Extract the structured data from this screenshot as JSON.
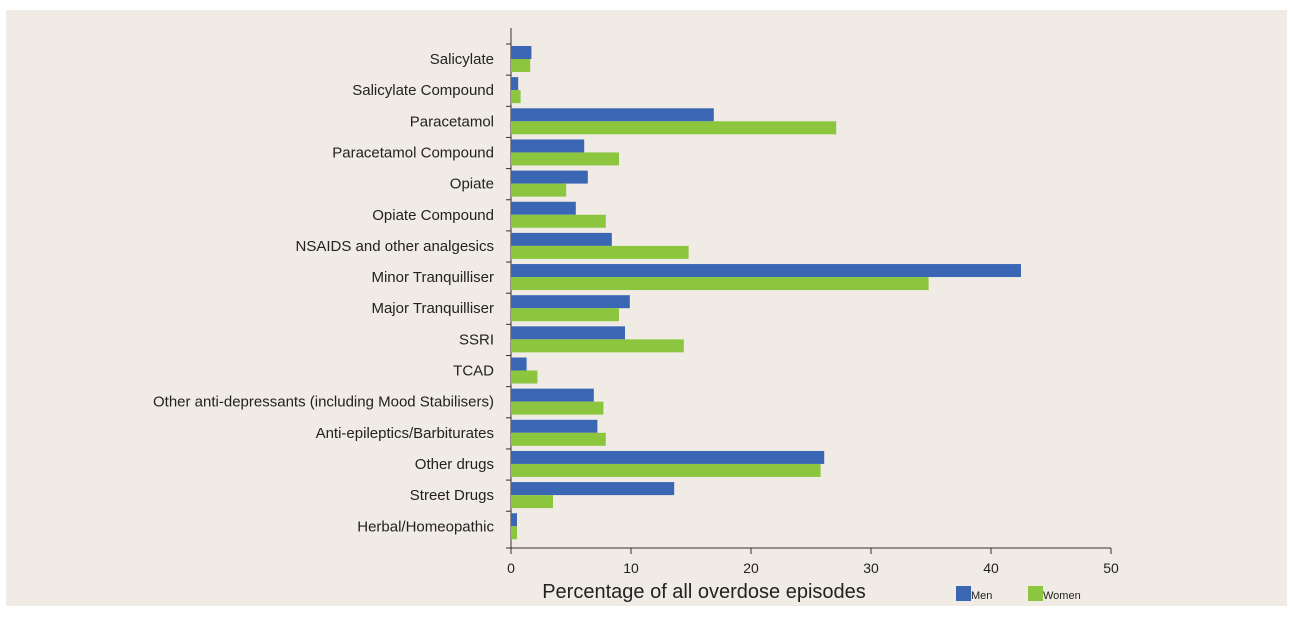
{
  "chart_data": {
    "type": "bar",
    "orientation": "horizontal",
    "categories": [
      "Salicylate",
      "Salicylate Compound",
      "Paracetamol",
      "Paracetamol Compound",
      "Opiate",
      "Opiate Compound",
      "NSAIDS and other analgesics",
      "Minor Tranquilliser",
      "Major Tranquilliser",
      "SSRI",
      "TCAD",
      "Other anti-depressants (including Mood Stabilisers)",
      "Anti-epileptics/Barbiturates",
      "Other drugs",
      "Street Drugs",
      "Herbal/Homeopathic"
    ],
    "series": [
      {
        "name": "Men",
        "color": "#3a66b4",
        "values": [
          1.7,
          0.6,
          16.9,
          6.1,
          6.4,
          5.4,
          8.4,
          42.5,
          9.9,
          9.5,
          1.3,
          6.9,
          7.2,
          26.1,
          13.6,
          0.5
        ]
      },
      {
        "name": "Women",
        "color": "#8cc63f",
        "values": [
          1.6,
          0.8,
          27.1,
          9.0,
          4.6,
          7.9,
          14.8,
          34.8,
          9.0,
          14.4,
          2.2,
          7.7,
          7.9,
          25.8,
          3.5,
          0.5
        ]
      }
    ],
    "xlabel": "Percentage of all overdose episodes",
    "xlim": [
      0,
      50
    ],
    "xticks": [
      0,
      10,
      20,
      30,
      40,
      50
    ],
    "grid": false,
    "legend_position": "bottom-right"
  }
}
